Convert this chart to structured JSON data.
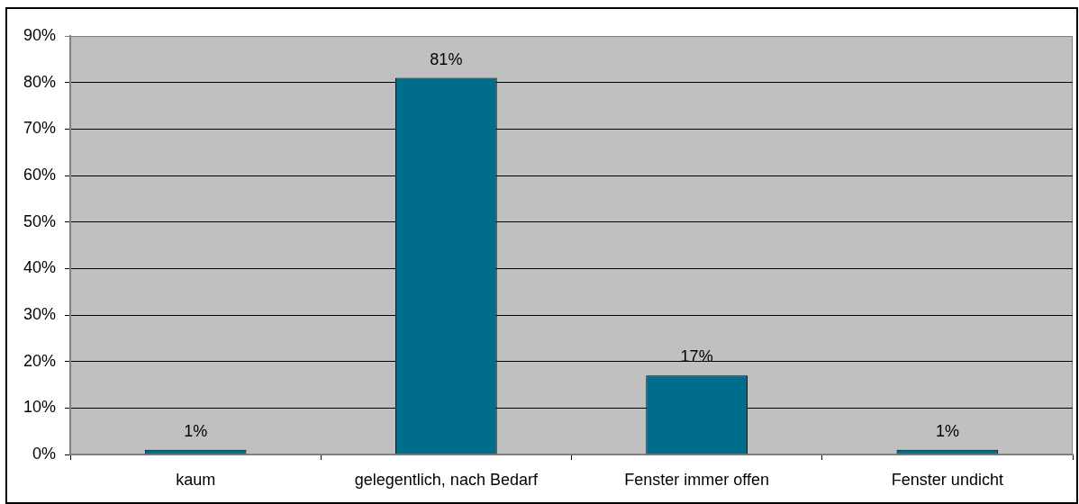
{
  "chart_data": {
    "type": "bar",
    "categories": [
      "kaum",
      "gelegentlich, nach Bedarf",
      "Fenster immer offen",
      "Fenster undicht"
    ],
    "values": [
      1,
      81,
      17,
      1
    ],
    "color": "#006d8c",
    "value_labels": [
      "1%",
      "81%",
      "17%",
      "1%"
    ],
    "ylim": [
      0,
      90
    ],
    "yticks": [
      {
        "value": 0,
        "label": "0%"
      },
      {
        "value": 10,
        "label": "10%"
      },
      {
        "value": 20,
        "label": "20%"
      },
      {
        "value": 30,
        "label": "30%"
      },
      {
        "value": 40,
        "label": "40%"
      },
      {
        "value": 50,
        "label": "50%"
      },
      {
        "value": 60,
        "label": "60%"
      },
      {
        "value": 70,
        "label": "70%"
      },
      {
        "value": 80,
        "label": "80%"
      },
      {
        "value": 90,
        "label": "90%"
      }
    ],
    "grid": "y"
  }
}
